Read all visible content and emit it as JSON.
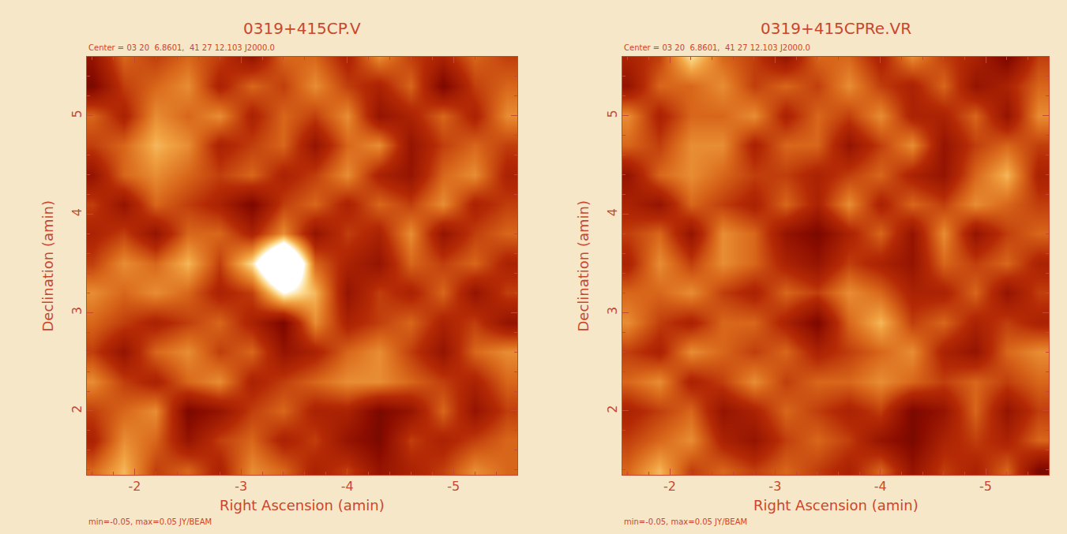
{
  "chart_data": [
    {
      "type": "heatmap",
      "title": "0319+415CP.V",
      "subtitle": "Center = 03 20  6.8601,  41 27 12.103 J2000.0",
      "xlabel": "Right Ascension (amin)",
      "ylabel": "Declination (amin)",
      "note": "min=-0.05, max=0.05 JY/BEAM",
      "xlim": [
        -1.55,
        -5.6
      ],
      "ylim": [
        1.35,
        5.6
      ],
      "xticks": [
        -2,
        -3,
        -4,
        -5
      ],
      "yticks": [
        2,
        3,
        4,
        5
      ],
      "zlim": [
        -0.05,
        0.05
      ],
      "x": [
        -1.6,
        -1.9,
        -2.2,
        -2.5,
        -2.8,
        -3.1,
        -3.4,
        -3.7,
        -4.0,
        -4.3,
        -4.6,
        -4.9,
        -5.2,
        -5.5
      ],
      "y": [
        1.4,
        1.7,
        2.0,
        2.3,
        2.6,
        2.9,
        3.2,
        3.5,
        3.8,
        4.1,
        4.4,
        4.7,
        5.0,
        5.3,
        5.6
      ],
      "z": [
        [
          0.01,
          0.03,
          0.0,
          0.01,
          -0.01,
          0.02,
          0.01,
          -0.01,
          0.0,
          -0.02,
          -0.01,
          0.0,
          0.02,
          0.01
        ],
        [
          -0.01,
          0.02,
          0.01,
          -0.02,
          0.0,
          0.01,
          -0.01,
          0.0,
          -0.02,
          -0.03,
          0.0,
          -0.01,
          0.0,
          0.01
        ],
        [
          0.0,
          0.01,
          0.02,
          -0.03,
          -0.02,
          0.0,
          0.01,
          -0.01,
          -0.01,
          -0.03,
          -0.02,
          0.01,
          -0.02,
          0.0
        ],
        [
          0.02,
          0.0,
          -0.01,
          0.01,
          0.02,
          -0.01,
          0.0,
          0.01,
          0.02,
          0.02,
          0.01,
          0.0,
          -0.01,
          0.01
        ],
        [
          0.0,
          -0.02,
          0.01,
          0.02,
          0.0,
          0.01,
          -0.02,
          -0.01,
          0.01,
          0.02,
          0.0,
          -0.02,
          0.01,
          0.02
        ],
        [
          0.01,
          0.0,
          -0.01,
          0.0,
          0.01,
          -0.01,
          -0.03,
          0.02,
          -0.01,
          0.0,
          0.01,
          -0.01,
          0.0,
          -0.02
        ],
        [
          0.02,
          0.01,
          0.02,
          0.01,
          -0.01,
          0.0,
          0.05,
          0.03,
          -0.02,
          0.0,
          -0.01,
          0.01,
          -0.02,
          0.0
        ],
        [
          0.0,
          0.02,
          0.01,
          0.03,
          0.0,
          0.04,
          0.12,
          0.01,
          -0.01,
          -0.02,
          0.01,
          0.0,
          0.01,
          -0.01
        ],
        [
          -0.01,
          0.0,
          -0.02,
          0.01,
          0.01,
          -0.01,
          0.02,
          -0.02,
          0.0,
          -0.01,
          0.02,
          -0.02,
          0.0,
          0.01
        ],
        [
          0.0,
          -0.02,
          0.01,
          0.0,
          -0.01,
          -0.03,
          0.0,
          0.01,
          -0.01,
          0.01,
          0.0,
          0.02,
          -0.01,
          0.0
        ],
        [
          -0.02,
          0.01,
          0.02,
          0.01,
          0.0,
          0.01,
          -0.01,
          0.0,
          0.02,
          -0.01,
          -0.02,
          0.01,
          0.02,
          -0.01
        ],
        [
          0.0,
          0.01,
          0.03,
          0.02,
          -0.01,
          0.0,
          0.01,
          -0.02,
          0.01,
          0.02,
          -0.02,
          0.0,
          0.01,
          0.0
        ],
        [
          0.01,
          -0.01,
          0.02,
          0.01,
          0.02,
          -0.01,
          0.01,
          0.0,
          0.02,
          -0.02,
          -0.01,
          0.01,
          -0.01,
          0.02
        ],
        [
          -0.03,
          0.0,
          0.01,
          0.02,
          -0.01,
          0.01,
          0.0,
          0.02,
          0.0,
          -0.01,
          0.01,
          -0.03,
          0.0,
          0.01
        ],
        [
          -0.02,
          0.01,
          0.0,
          0.01,
          0.0,
          -0.02,
          0.01,
          0.01,
          -0.01,
          0.02,
          0.0,
          -0.01,
          0.01,
          0.0
        ]
      ]
    },
    {
      "type": "heatmap",
      "title": "0319+415CPRe.VR",
      "subtitle": "Center = 03 20  6.8601,  41 27 12.103 J2000.0",
      "xlabel": "Right Ascension (amin)",
      "ylabel": "Declination (amin)",
      "note": "min=-0.05, max=0.05 JY/BEAM",
      "xlim": [
        -1.55,
        -5.6
      ],
      "ylim": [
        1.35,
        5.6
      ],
      "xticks": [
        -2,
        -3,
        -4,
        -5
      ],
      "yticks": [
        2,
        3,
        4,
        5
      ],
      "zlim": [
        -0.05,
        0.05
      ],
      "x": [
        -1.6,
        -1.9,
        -2.2,
        -2.5,
        -2.8,
        -3.1,
        -3.4,
        -3.7,
        -4.0,
        -4.3,
        -4.6,
        -4.9,
        -5.2,
        -5.5
      ],
      "y": [
        1.4,
        1.7,
        2.0,
        2.3,
        2.6,
        2.9,
        3.2,
        3.5,
        3.8,
        4.1,
        4.4,
        4.7,
        5.0,
        5.3,
        5.6
      ],
      "z": [
        [
          0.01,
          0.03,
          0.0,
          0.01,
          0.0,
          0.01,
          0.0,
          -0.01,
          0.01,
          -0.02,
          0.0,
          -0.01,
          0.01,
          -0.03
        ],
        [
          0.0,
          0.01,
          0.02,
          -0.01,
          -0.02,
          0.0,
          0.01,
          0.0,
          -0.02,
          -0.03,
          -0.01,
          0.0,
          -0.01,
          0.01
        ],
        [
          -0.01,
          0.0,
          0.01,
          -0.02,
          -0.01,
          0.01,
          0.0,
          -0.01,
          0.0,
          -0.03,
          -0.02,
          0.01,
          -0.02,
          0.0
        ],
        [
          0.01,
          0.02,
          -0.01,
          0.0,
          0.02,
          0.0,
          0.01,
          0.01,
          0.02,
          0.01,
          0.0,
          0.01,
          0.0,
          0.01
        ],
        [
          0.0,
          -0.01,
          0.02,
          0.01,
          0.0,
          0.01,
          -0.01,
          0.0,
          0.01,
          0.02,
          -0.01,
          -0.02,
          0.01,
          0.02
        ],
        [
          0.02,
          0.0,
          -0.01,
          0.01,
          0.01,
          -0.01,
          -0.03,
          0.01,
          0.03,
          0.0,
          0.01,
          -0.01,
          0.0,
          -0.01
        ],
        [
          0.01,
          0.01,
          0.02,
          0.0,
          -0.01,
          0.01,
          0.0,
          0.02,
          0.01,
          -0.01,
          -0.01,
          0.01,
          -0.02,
          0.0
        ],
        [
          -0.01,
          0.02,
          0.0,
          0.02,
          0.01,
          -0.01,
          -0.02,
          0.0,
          -0.01,
          -0.02,
          0.01,
          0.0,
          0.01,
          -0.01
        ],
        [
          0.0,
          0.01,
          -0.02,
          0.02,
          0.01,
          -0.02,
          -0.03,
          -0.01,
          0.01,
          -0.02,
          0.02,
          -0.02,
          0.0,
          0.01
        ],
        [
          -0.01,
          -0.02,
          0.01,
          0.0,
          -0.01,
          0.01,
          -0.01,
          0.02,
          -0.01,
          0.01,
          0.0,
          0.02,
          0.01,
          0.0
        ],
        [
          -0.02,
          0.01,
          0.02,
          0.01,
          0.0,
          0.0,
          -0.01,
          0.0,
          0.01,
          -0.01,
          -0.02,
          0.01,
          0.03,
          -0.01
        ],
        [
          0.01,
          0.0,
          0.02,
          0.02,
          -0.01,
          0.01,
          0.01,
          -0.02,
          0.0,
          0.02,
          -0.02,
          0.0,
          0.01,
          0.0
        ],
        [
          0.02,
          -0.01,
          0.01,
          0.01,
          0.02,
          -0.01,
          0.01,
          0.0,
          0.02,
          -0.01,
          -0.01,
          0.01,
          -0.02,
          0.02
        ],
        [
          -0.02,
          0.01,
          0.01,
          0.02,
          0.0,
          0.01,
          0.0,
          0.02,
          0.0,
          -0.01,
          0.01,
          -0.02,
          -0.01,
          0.01
        ],
        [
          -0.01,
          0.0,
          0.04,
          0.01,
          0.0,
          -0.02,
          0.01,
          0.01,
          -0.01,
          0.02,
          0.0,
          -0.01,
          -0.03,
          0.0
        ]
      ]
    }
  ]
}
